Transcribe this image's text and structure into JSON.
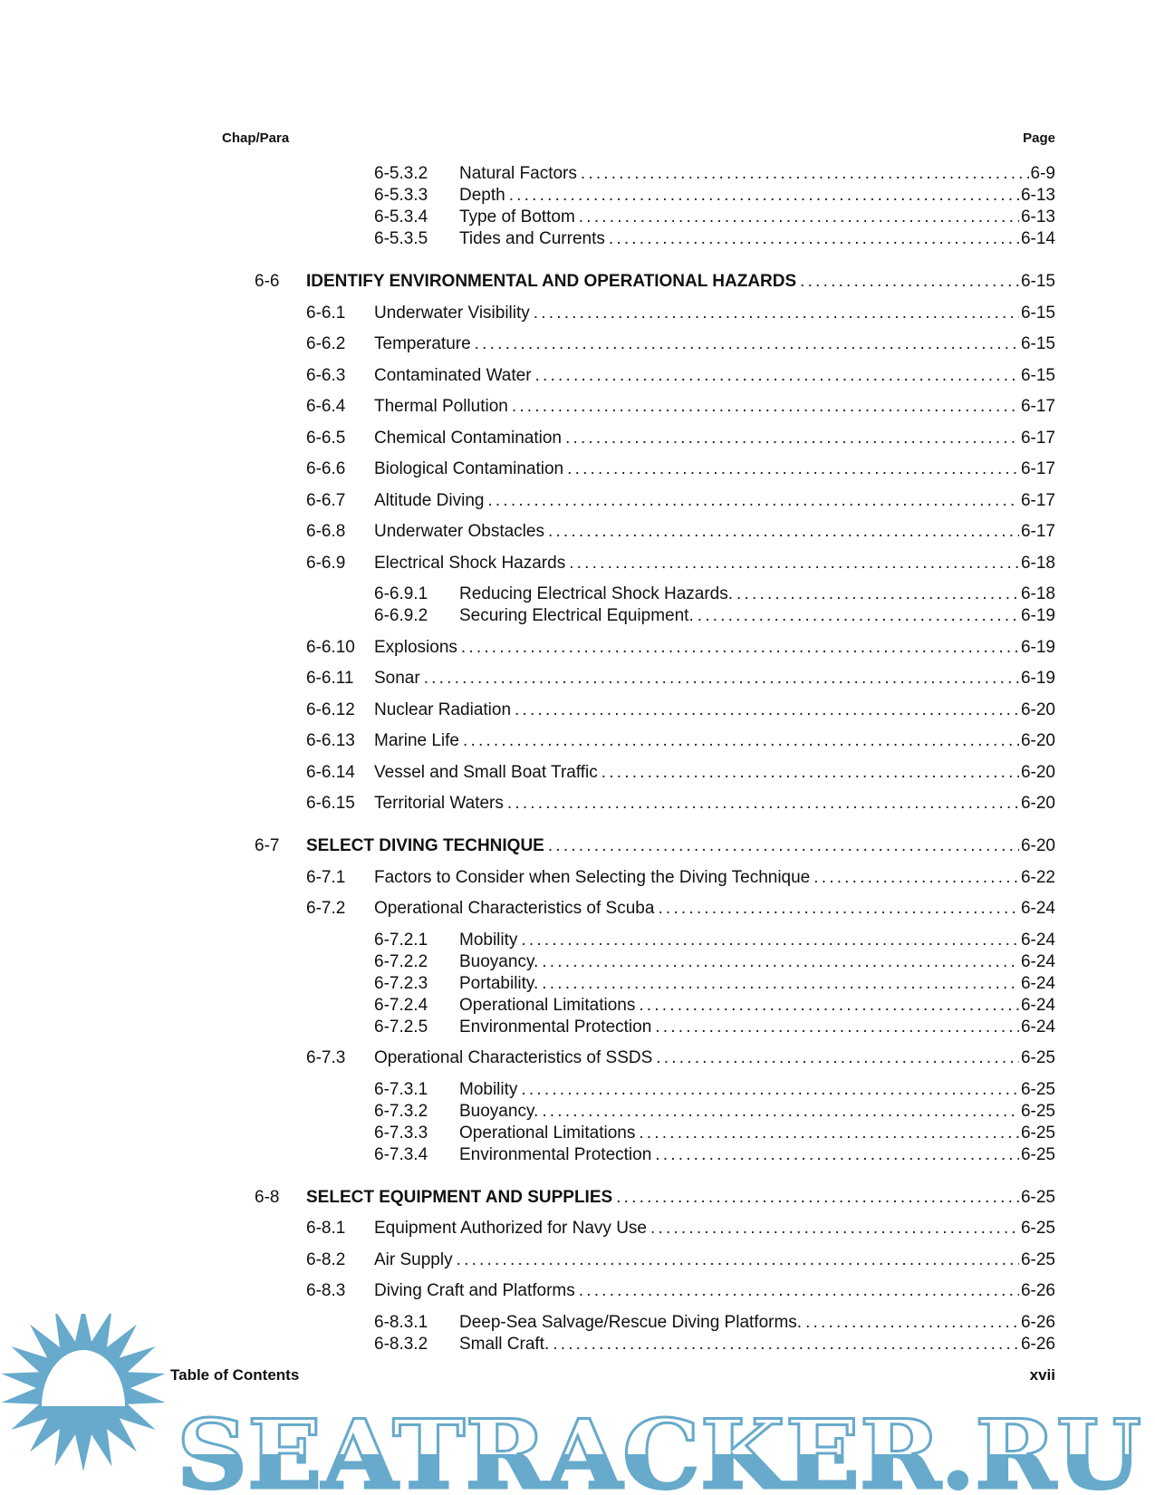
{
  "header": {
    "left": "Chap/Para",
    "right": "Page"
  },
  "entries": [
    {
      "level": 3,
      "num": "6-5.3.2",
      "title": "Natural Factors",
      "page": "6-9"
    },
    {
      "level": 3,
      "num": "6-5.3.3",
      "title": "Depth",
      "page": "6-13"
    },
    {
      "level": 3,
      "num": "6-5.3.4",
      "title": "Type of Bottom",
      "page": "6-13"
    },
    {
      "level": 3,
      "num": "6-5.3.5",
      "title": "Tides and Currents",
      "page": "6-14"
    },
    {
      "level": 1,
      "num": "6-6",
      "title": "IDENTIFY ENVIRONMENTAL AND OPERATIONAL HAZARDS",
      "page": "6-15"
    },
    {
      "level": 2,
      "num": "6-6.1",
      "title": "Underwater Visibility",
      "page": "6-15"
    },
    {
      "level": 2,
      "num": "6-6.2",
      "title": "Temperature",
      "page": "6-15"
    },
    {
      "level": 2,
      "num": "6-6.3",
      "title": "Contaminated Water",
      "page": "6-15"
    },
    {
      "level": 2,
      "num": "6-6.4",
      "title": "Thermal Pollution",
      "page": "6-17"
    },
    {
      "level": 2,
      "num": "6-6.5",
      "title": "Chemical Contamination",
      "page": "6-17"
    },
    {
      "level": 2,
      "num": "6-6.6",
      "title": "Biological Contamination",
      "page": "6-17"
    },
    {
      "level": 2,
      "num": "6-6.7",
      "title": "Altitude Diving",
      "page": "6-17"
    },
    {
      "level": 2,
      "num": "6-6.8",
      "title": "Underwater Obstacles",
      "page": "6-17"
    },
    {
      "level": 2,
      "num": "6-6.9",
      "title": "Electrical Shock Hazards",
      "page": "6-18"
    },
    {
      "level": 3,
      "num": "6-6.9.1",
      "title": "Reducing Electrical Shock Hazards.",
      "page": "6-18"
    },
    {
      "level": 3,
      "num": "6-6.9.2",
      "title": "Securing Electrical Equipment.",
      "page": "6-19"
    },
    {
      "level": 2,
      "num": "6-6.10",
      "title": "Explosions",
      "page": "6-19"
    },
    {
      "level": 2,
      "num": "6-6.11",
      "title": "Sonar",
      "page": "6-19"
    },
    {
      "level": 2,
      "num": "6-6.12",
      "title": "Nuclear Radiation",
      "page": "6-20"
    },
    {
      "level": 2,
      "num": "6-6.13",
      "title": "Marine Life",
      "page": "6-20"
    },
    {
      "level": 2,
      "num": "6-6.14",
      "title": "Vessel and Small Boat Traffic",
      "page": "6-20"
    },
    {
      "level": 2,
      "num": "6-6.15",
      "title": "Territorial Waters",
      "page": "6-20"
    },
    {
      "level": 1,
      "num": "6-7",
      "title": "SELECT DIVING TECHNIQUE",
      "page": "6-20"
    },
    {
      "level": 2,
      "num": "6-7.1",
      "title": "Factors to Consider when Selecting the Diving Technique",
      "page": "6-22"
    },
    {
      "level": 2,
      "num": "6-7.2",
      "title": "Operational Characteristics of Scuba",
      "page": "6-24"
    },
    {
      "level": 3,
      "num": "6-7.2.1",
      "title": "Mobility",
      "page": "6-24"
    },
    {
      "level": 3,
      "num": "6-7.2.2",
      "title": "Buoyancy.",
      "page": "6-24"
    },
    {
      "level": 3,
      "num": "6-7.2.3",
      "title": "Portability.",
      "page": "6-24"
    },
    {
      "level": 3,
      "num": "6-7.2.4",
      "title": "Operational Limitations",
      "page": "6-24"
    },
    {
      "level": 3,
      "num": "6-7.2.5",
      "title": "Environmental Protection",
      "page": "6-24"
    },
    {
      "level": 2,
      "num": "6-7.3",
      "title": "Operational Characteristics of SSDS",
      "page": "6-25"
    },
    {
      "level": 3,
      "num": "6-7.3.1",
      "title": "Mobility",
      "page": "6-25"
    },
    {
      "level": 3,
      "num": "6-7.3.2",
      "title": "Buoyancy.",
      "page": "6-25"
    },
    {
      "level": 3,
      "num": "6-7.3.3",
      "title": "Operational Limitations",
      "page": "6-25"
    },
    {
      "level": 3,
      "num": "6-7.3.4",
      "title": "Environmental Protection",
      "page": "6-25"
    },
    {
      "level": 1,
      "num": "6-8",
      "title": "SELECT EQUIPMENT AND SUPPLIES",
      "page": "6-25"
    },
    {
      "level": 2,
      "num": "6-8.1",
      "title": "Equipment Authorized for Navy Use",
      "page": "6-25"
    },
    {
      "level": 2,
      "num": "6-8.2",
      "title": "Air Supply",
      "page": "6-25"
    },
    {
      "level": 2,
      "num": "6-8.3",
      "title": "Diving Craft and Platforms",
      "page": "6-26"
    },
    {
      "level": 3,
      "num": "6-8.3.1",
      "title": "Deep-Sea Salvage/Rescue Diving Platforms.",
      "page": "6-26"
    },
    {
      "level": 3,
      "num": "6-8.3.2",
      "title": "Small Craft.",
      "page": "6-26"
    }
  ],
  "footer": {
    "left": "Table of Contents",
    "right": "xvii"
  },
  "watermark": {
    "text": "SEATRACKER.RU",
    "color": "#67aacb"
  }
}
